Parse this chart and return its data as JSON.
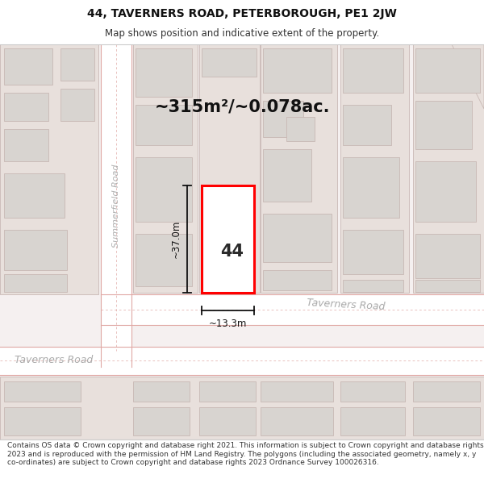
{
  "title_line1": "44, TAVERNERS ROAD, PETERBOROUGH, PE1 2JW",
  "title_line2": "Map shows position and indicative extent of the property.",
  "area_text": "~315m²/~0.078ac.",
  "label_44": "44",
  "dim_height": "~37.0m",
  "dim_width": "~13.3m",
  "road_label_top": "Taverners Road",
  "road_label_left": "Summerfield Road",
  "road_label_bottom_left": "Taverners Road",
  "footer_text": "Contains OS data © Crown copyright and database right 2021. This information is subject to Crown copyright and database rights 2023 and is reproduced with the permission of HM Land Registry. The polygons (including the associated geometry, namely x, y co-ordinates) are subject to Crown copyright and database rights 2023 Ordnance Survey 100026316.",
  "map_bg": "#f5f0f0",
  "building_fill": "#d8d4d0",
  "building_edge": "#c8b8b4",
  "road_fill": "#ffffff",
  "block_fill": "#e8e0dc",
  "highlight_fill": "#ffffff",
  "highlight_edge": "#ff0000",
  "road_line": "#e0a8a4",
  "title_bg": "#ffffff",
  "footer_bg": "#ffffff"
}
